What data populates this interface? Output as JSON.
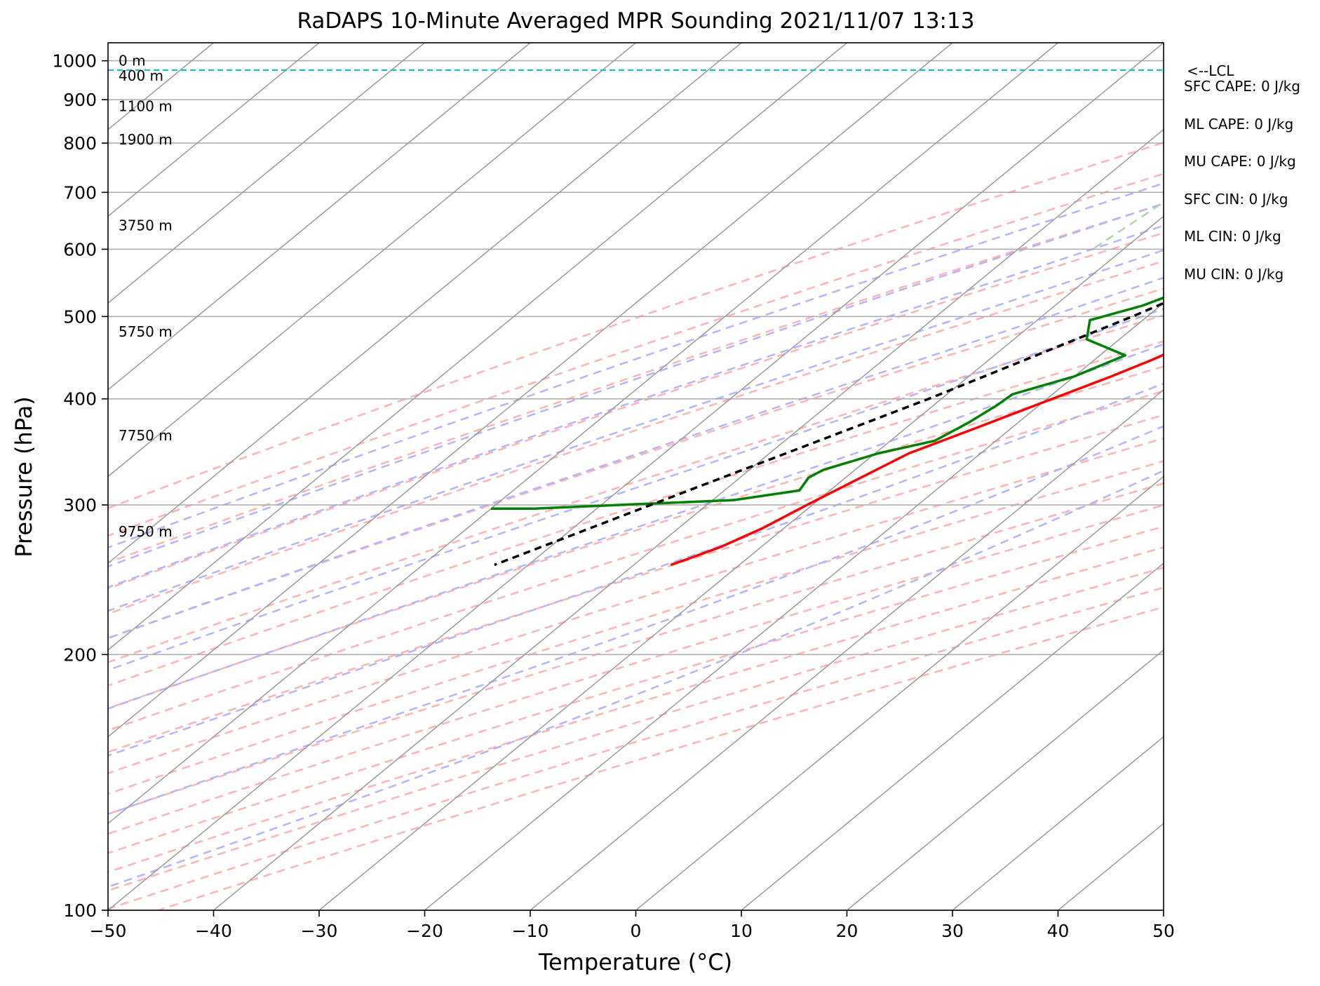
{
  "chart_data": {
    "type": "line",
    "subtype": "skew-T log-P sounding",
    "title": "RaDAPS 10-Minute Averaged MPR Sounding 2021/11/07 13:13",
    "xlabel": "Temperature (°C)",
    "ylabel": "Pressure (hPa)",
    "xlim": [
      -50,
      50
    ],
    "ylim": [
      1050,
      100
    ],
    "y_scale": "log",
    "x_ticks": [
      -50,
      -40,
      -30,
      -20,
      -10,
      0,
      10,
      20,
      30,
      40,
      50
    ],
    "x_tick_labels": [
      "−50",
      "−40",
      "−30",
      "−20",
      "−10",
      "0",
      "10",
      "20",
      "30",
      "40",
      "50"
    ],
    "y_ticks": [
      1000,
      900,
      800,
      700,
      600,
      500,
      400,
      300,
      200,
      100
    ],
    "y_tick_labels": [
      "1000",
      "900",
      "800",
      "700",
      "600",
      "500",
      "400",
      "300",
      "200",
      "100"
    ],
    "grid": true,
    "series": [
      {
        "key": "temperature",
        "color": "#ff0000",
        "points": [
          [
            1000,
            6.0
          ],
          [
            994,
            14.0
          ],
          [
            985,
            17.5
          ],
          [
            975,
            18.7
          ],
          [
            960,
            19.3
          ],
          [
            945,
            19.4
          ],
          [
            928,
            18.8
          ],
          [
            910,
            16.5
          ],
          [
            895,
            14.5
          ],
          [
            880,
            12.8
          ],
          [
            866,
            11.4
          ],
          [
            850,
            10.6
          ],
          [
            835,
            9.8
          ],
          [
            820,
            8.7
          ],
          [
            806,
            7.8
          ],
          [
            790,
            7.3
          ],
          [
            755,
            5.3
          ],
          [
            726,
            3.8
          ],
          [
            700,
            2.0
          ],
          [
            680,
            1.5
          ],
          [
            660,
            0.3
          ],
          [
            630,
            -1.2
          ],
          [
            600,
            -3.0
          ],
          [
            565,
            -5.5
          ],
          [
            540,
            -7.2
          ],
          [
            505,
            -9.5
          ],
          [
            470,
            -12.5
          ],
          [
            445,
            -14.5
          ],
          [
            425,
            -16.5
          ],
          [
            400,
            -19.5
          ],
          [
            370,
            -23.3
          ],
          [
            345,
            -26.8
          ],
          [
            320,
            -28.8
          ],
          [
            300,
            -30.5
          ],
          [
            282,
            -32.0
          ],
          [
            268,
            -33.8
          ],
          [
            259,
            -35.6
          ],
          [
            255,
            -36.5
          ]
        ]
      },
      {
        "key": "dewpoint",
        "color": "#008000",
        "points": [
          [
            1000,
            4.5
          ],
          [
            996,
            -2.0
          ],
          [
            990,
            -10.0
          ],
          [
            980,
            -14.0
          ],
          [
            965,
            -17.0
          ],
          [
            952,
            -18.0
          ],
          [
            940,
            -19.0
          ],
          [
            925,
            -20.0
          ],
          [
            912,
            -21.4
          ],
          [
            902,
            -21.4
          ],
          [
            892,
            -21.0
          ],
          [
            878,
            -23.6
          ],
          [
            868,
            -28.1
          ],
          [
            857,
            -27.5
          ],
          [
            840,
            -25.0
          ],
          [
            812,
            -17.3
          ],
          [
            805,
            -17.3
          ],
          [
            785,
            -13.3
          ],
          [
            765,
            -10.0
          ],
          [
            745,
            -9.0
          ],
          [
            725,
            -10.4
          ],
          [
            712,
            -10.5
          ],
          [
            705,
            -10.5
          ],
          [
            692,
            -8.6
          ],
          [
            678,
            -6.3
          ],
          [
            665,
            -6.0
          ],
          [
            645,
            -9.0
          ],
          [
            620,
            -14.7
          ],
          [
            580,
            -21.5
          ],
          [
            565,
            -18.6
          ],
          [
            540,
            -19.3
          ],
          [
            515,
            -21.7
          ],
          [
            495,
            -25.0
          ],
          [
            470,
            -23.1
          ],
          [
            450,
            -17.6
          ],
          [
            425,
            -20.0
          ],
          [
            405,
            -23.8
          ],
          [
            393,
            -24.0
          ],
          [
            375,
            -24.7
          ],
          [
            357,
            -25.8
          ],
          [
            345,
            -29.7
          ],
          [
            330,
            -33.0
          ],
          [
            323,
            -33.5
          ],
          [
            312,
            -32.9
          ],
          [
            304,
            -38.0
          ],
          [
            297,
            -56.0
          ],
          [
            297,
            -60.0
          ]
        ]
      },
      {
        "key": "parcel",
        "color": "#000000",
        "points": [
          [
            1000,
            6.0
          ],
          [
            990,
            5.1
          ],
          [
            975,
            4.0
          ],
          [
            955,
            2.7
          ],
          [
            940,
            1.5
          ],
          [
            900,
            -0.5
          ],
          [
            850,
            -2.5
          ],
          [
            800,
            -4.4
          ],
          [
            700,
            -8.8
          ],
          [
            600,
            -14.3
          ],
          [
            500,
            -21.4
          ],
          [
            400,
            -31.2
          ],
          [
            300,
            -45.3
          ],
          [
            255,
            -53.2
          ]
        ]
      }
    ],
    "lcl_pressure": 975,
    "lcl_label": "<--LCL",
    "lcl_color": "#17becf",
    "height_labels": [
      {
        "text": "0 m",
        "p": 1000
      },
      {
        "text": "400 m",
        "p": 960
      },
      {
        "text": "1100 m",
        "p": 884
      },
      {
        "text": "1900 m",
        "p": 808
      },
      {
        "text": "3750 m",
        "p": 640
      },
      {
        "text": "5750 m",
        "p": 480
      },
      {
        "text": "7750 m",
        "p": 362
      },
      {
        "text": "9750 m",
        "p": 279
      }
    ],
    "dry_adiabats_theta_k": [
      250,
      260,
      270,
      280,
      290,
      300,
      310,
      320,
      330,
      340,
      350,
      360,
      370,
      380,
      390,
      400,
      410,
      420,
      430,
      440
    ],
    "moist_adiabats_c": [
      -10,
      -5,
      0,
      5,
      10,
      15,
      20,
      25,
      30,
      35
    ],
    "mixing_ratio_lines_gkg": [
      0.4,
      1,
      2,
      4,
      7,
      10,
      16,
      24,
      32,
      40
    ],
    "colors": {
      "grid": "#aaaaaa",
      "dry_adiabat": "#ffb3b3",
      "moist_adiabat": "#b3b3ff",
      "mixing_ratio": "#a8d8a8"
    }
  },
  "stats": [
    {
      "label": "SFC CAPE: 0 J/kg"
    },
    {
      "label": "ML CAPE: 0 J/kg"
    },
    {
      "label": "MU CAPE: 0 J/kg"
    },
    {
      "label": "SFC CIN: 0 J/kg"
    },
    {
      "label": "ML CIN: 0 J/kg"
    },
    {
      "label": "MU CIN: 0 J/kg"
    }
  ]
}
